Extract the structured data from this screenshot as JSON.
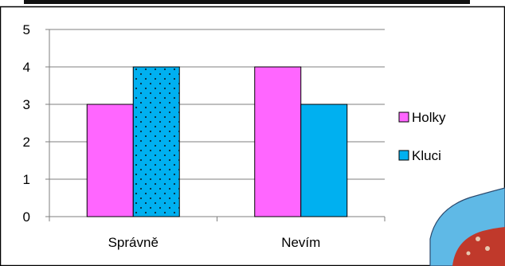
{
  "colors": {
    "holky": "#FF66FF",
    "kluci": "#00B0F0",
    "axis": "#7f7f7f",
    "grid": "#7f7f7f",
    "border": "#000000",
    "cropped_bg": "#5fb9e6",
    "cropped_red": "#c0392b"
  },
  "chart_data": {
    "type": "bar",
    "categories": [
      "Správně",
      "Nevím"
    ],
    "series": [
      {
        "name": "Holky",
        "values": [
          3,
          4
        ],
        "color": "#FF66FF",
        "pattern": "none"
      },
      {
        "name": "Kluci",
        "values": [
          4,
          3
        ],
        "color": "#00B0F0",
        "pattern": "dots-first-bar"
      }
    ],
    "yticks": [
      "0",
      "1",
      "2",
      "3",
      "4",
      "5"
    ],
    "ylim": [
      0,
      5
    ],
    "grid": true,
    "legend_position": "right"
  }
}
